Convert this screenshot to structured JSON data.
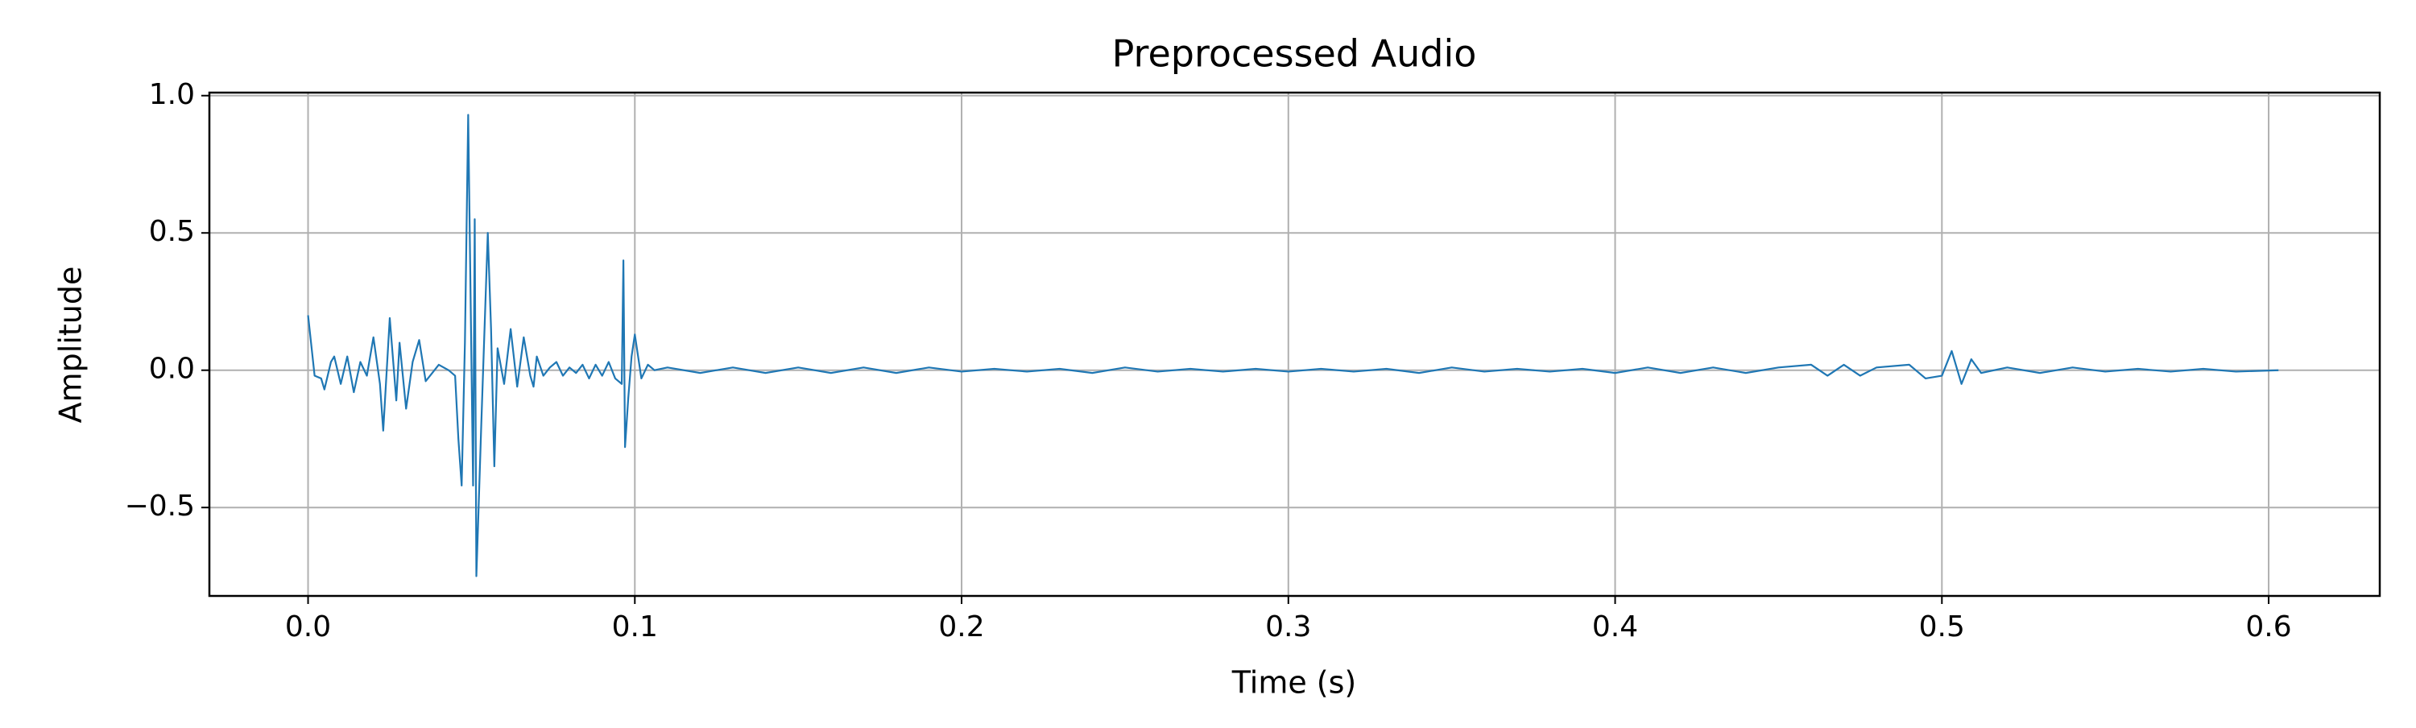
{
  "chart_data": {
    "type": "line",
    "title": "Preprocessed Audio",
    "x_label": "Time (s)",
    "y_label": "Amplitude",
    "color": "#1f77b4",
    "grid": true,
    "xlim": [
      -0.0302,
      0.634
    ],
    "ylim": [
      -0.822,
      1.011
    ],
    "xticks": [
      {
        "value": 0,
        "label": "0.0"
      },
      0.1,
      0.2,
      0.3,
      0.4,
      0.5,
      0.6
    ],
    "yticks": [
      {
        "value": -0.5,
        "label": "−0.5"
      },
      {
        "value": 0,
        "label": "0.0"
      },
      0.5,
      {
        "value": 1,
        "label": "1.0"
      }
    ],
    "x": [
      0,
      0.002,
      0.004,
      0.005,
      0.007,
      0.008,
      0.01,
      0.012,
      0.014,
      0.016,
      0.018,
      0.02,
      0.022,
      0.023,
      0.025,
      0.027,
      0.028,
      0.03,
      0.032,
      0.034,
      0.036,
      0.038,
      0.04,
      0.043,
      0.045,
      0.046,
      0.047,
      0.048,
      0.049,
      0.0505,
      0.051,
      0.0515,
      0.052,
      0.053,
      0.055,
      0.056,
      0.057,
      0.058,
      0.06,
      0.062,
      0.064,
      0.066,
      0.068,
      0.069,
      0.07,
      0.072,
      0.074,
      0.076,
      0.078,
      0.08,
      0.082,
      0.084,
      0.086,
      0.088,
      0.09,
      0.092,
      0.094,
      0.096,
      0.0965,
      0.097,
      0.098,
      0.099,
      0.1,
      0.102,
      0.104,
      0.106,
      0.11,
      0.12,
      0.13,
      0.14,
      0.15,
      0.16,
      0.17,
      0.18,
      0.19,
      0.2,
      0.21,
      0.22,
      0.23,
      0.24,
      0.25,
      0.26,
      0.27,
      0.28,
      0.29,
      0.3,
      0.31,
      0.32,
      0.33,
      0.34,
      0.35,
      0.36,
      0.37,
      0.38,
      0.39,
      0.4,
      0.41,
      0.42,
      0.43,
      0.44,
      0.45,
      0.46,
      0.465,
      0.47,
      0.475,
      0.48,
      0.49,
      0.495,
      0.5,
      0.503,
      0.506,
      0.509,
      0.512,
      0.52,
      0.53,
      0.54,
      0.55,
      0.56,
      0.57,
      0.58,
      0.59,
      0.603
    ],
    "values": [
      0.2,
      -0.02,
      -0.03,
      -0.07,
      0.03,
      0.05,
      -0.05,
      0.05,
      -0.08,
      0.03,
      -0.02,
      0.12,
      -0.05,
      -0.22,
      0.19,
      -0.11,
      0.1,
      -0.14,
      0.03,
      0.11,
      -0.04,
      -0.01,
      0.02,
      0,
      -0.02,
      -0.25,
      -0.42,
      0.1,
      0.93,
      -0.42,
      0.55,
      -0.75,
      -0.57,
      -0.2,
      0.5,
      0.15,
      -0.35,
      0.08,
      -0.05,
      0.15,
      -0.06,
      0.12,
      -0.02,
      -0.06,
      0.05,
      -0.02,
      0.01,
      0.03,
      -0.02,
      0.01,
      -0.01,
      0.02,
      -0.03,
      0.02,
      -0.02,
      0.03,
      -0.03,
      -0.05,
      0.4,
      -0.28,
      -0.1,
      0.05,
      0.13,
      -0.03,
      0.02,
      0,
      0.01,
      -0.01,
      0.01,
      -0.01,
      0.01,
      -0.01,
      0.01,
      -0.01,
      0.01,
      -0.005,
      0.005,
      -0.005,
      0.005,
      -0.01,
      0.01,
      -0.005,
      0.005,
      -0.005,
      0.005,
      -0.005,
      0.005,
      -0.005,
      0.005,
      -0.01,
      0.01,
      -0.005,
      0.005,
      -0.005,
      0.005,
      -0.01,
      0.01,
      -0.01,
      0.01,
      -0.01,
      0.01,
      0.02,
      -0.02,
      0.02,
      -0.02,
      0.01,
      0.02,
      -0.03,
      -0.02,
      0.07,
      -0.05,
      0.04,
      -0.01,
      0.01,
      -0.01,
      0.01,
      -0.005,
      0.005,
      -0.005,
      0.005,
      -0.005,
      0
    ]
  }
}
